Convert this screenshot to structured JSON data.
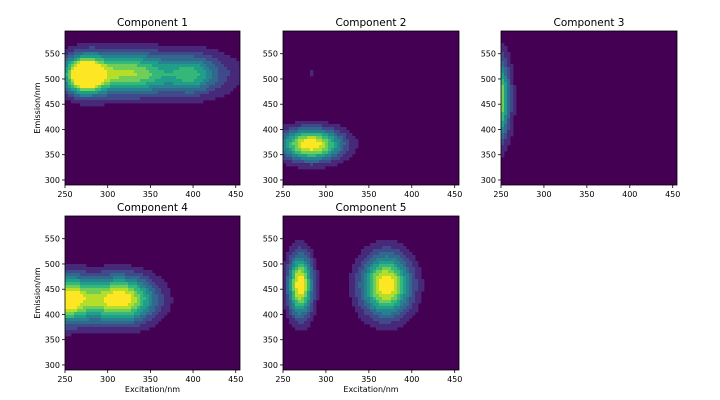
{
  "chart_data": {
    "type": "heatmap",
    "subtype": "filled-contour",
    "colormap": [
      "#440154",
      "#482878",
      "#3e4a89",
      "#31688e",
      "#26828e",
      "#1f9e89",
      "#35b779",
      "#6ece58",
      "#b5de2b",
      "#fde725"
    ],
    "background_color": "#440154",
    "xlim": [
      250,
      455
    ],
    "ylim": [
      290,
      595
    ],
    "xticks": [
      "250",
      "300",
      "350",
      "400",
      "450"
    ],
    "yticks": [
      "300",
      "350",
      "400",
      "450",
      "500",
      "550"
    ],
    "xlabel": "Excitation/nm",
    "ylabel": "Emission/nm",
    "panels": [
      {
        "title": "Component 1",
        "show_ylabel": true,
        "show_xlabel": false,
        "peaks": [
          {
            "ex": 273,
            "em": 507,
            "sx": 14,
            "sy": 24,
            "amp": 1.0
          },
          {
            "ex": 300,
            "em": 512,
            "sx": 40,
            "sy": 30,
            "amp": 0.55
          },
          {
            "ex": 350,
            "em": 510,
            "sx": 40,
            "sy": 30,
            "amp": 0.45
          },
          {
            "ex": 398,
            "em": 508,
            "sx": 16,
            "sy": 26,
            "amp": 0.32
          },
          {
            "ex": 425,
            "em": 510,
            "sx": 25,
            "sy": 32,
            "amp": 0.2
          }
        ]
      },
      {
        "title": "Component 2",
        "show_ylabel": false,
        "show_xlabel": false,
        "peaks": [
          {
            "ex": 283,
            "em": 370,
            "sx": 25,
            "sy": 22,
            "amp": 1.0
          },
          {
            "ex": 283,
            "em": 512,
            "sx": 5,
            "sy": 9,
            "amp": 0.12
          }
        ]
      },
      {
        "title": "Component 3",
        "show_ylabel": false,
        "show_xlabel": false,
        "peaks": [
          {
            "ex": 245,
            "em": 460,
            "sx": 10,
            "sy": 55,
            "amp": 1.0
          }
        ]
      },
      {
        "title": "Component 4",
        "show_ylabel": true,
        "show_xlabel": true,
        "peaks": [
          {
            "ex": 250,
            "em": 430,
            "sx": 22,
            "sy": 32,
            "amp": 1.0
          },
          {
            "ex": 315,
            "em": 430,
            "sx": 28,
            "sy": 32,
            "amp": 1.0
          }
        ]
      },
      {
        "title": "Component 5",
        "show_ylabel": false,
        "show_xlabel": true,
        "peaks": [
          {
            "ex": 270,
            "em": 458,
            "sx": 10,
            "sy": 42,
            "amp": 1.0
          },
          {
            "ex": 370,
            "em": 458,
            "sx": 20,
            "sy": 42,
            "amp": 1.0
          }
        ]
      }
    ]
  }
}
